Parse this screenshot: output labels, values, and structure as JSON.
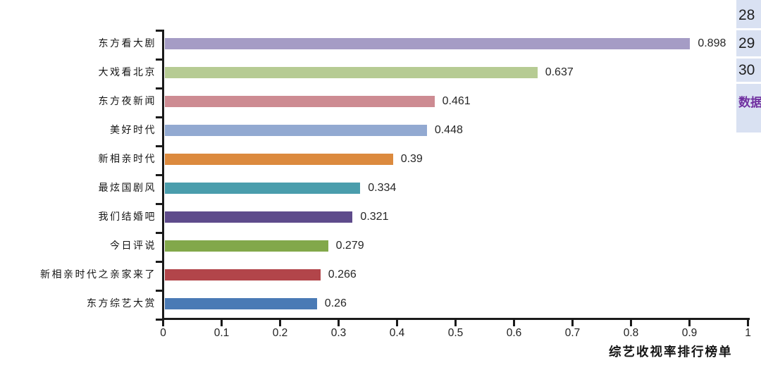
{
  "chart_data": {
    "type": "bar",
    "orientation": "horizontal",
    "title": "",
    "xlabel": "综艺收视率排行榜单",
    "ylabel": "",
    "xlim": [
      0,
      1
    ],
    "x_tick_values": [
      0,
      0.1,
      0.2,
      0.3,
      0.4,
      0.5,
      0.6,
      0.7,
      0.8,
      0.9,
      1
    ],
    "x_tick_labels": [
      "0",
      "0.1",
      "0.2",
      "0.3",
      "0.4",
      "0.5",
      "0.6",
      "0.7",
      "0.8",
      "0.9",
      "1"
    ],
    "grid": false,
    "legend": "none",
    "categories": [
      "东方看大剧",
      "大戏看北京",
      "东方夜新闻",
      "美好时代",
      "新相亲时代",
      "最炫国剧风",
      "我们结婚吧",
      "今日评说",
      "新相亲时代之亲家来了",
      "东方综艺大赏"
    ],
    "values": [
      0.898,
      0.637,
      0.461,
      0.448,
      0.39,
      0.334,
      0.321,
      0.279,
      0.266,
      0.26
    ],
    "value_labels": [
      "0.898",
      "0.637",
      "0.461",
      "0.448",
      "0.39",
      "0.334",
      "0.321",
      "0.279",
      "0.266",
      "0.26"
    ],
    "bar_colors": [
      "#a59cc5",
      "#b6cb93",
      "#cd8b92",
      "#92a9d1",
      "#dc8a3e",
      "#4a9dac",
      "#5e4b8b",
      "#82a84a",
      "#b2454a",
      "#4a7ab5"
    ],
    "axis_color": "#1a1a1a"
  },
  "side_panel": {
    "bg_color": "#d9e1f2",
    "rows": [
      {
        "label": "28",
        "color": "#1f1f1f",
        "bold": false
      },
      {
        "label": "29",
        "color": "#1f1f1f",
        "bold": false
      },
      {
        "label": "30",
        "color": "#1f1f1f",
        "bold": false
      },
      {
        "label": "数据",
        "color": "#7030a0",
        "bold": true
      }
    ]
  }
}
